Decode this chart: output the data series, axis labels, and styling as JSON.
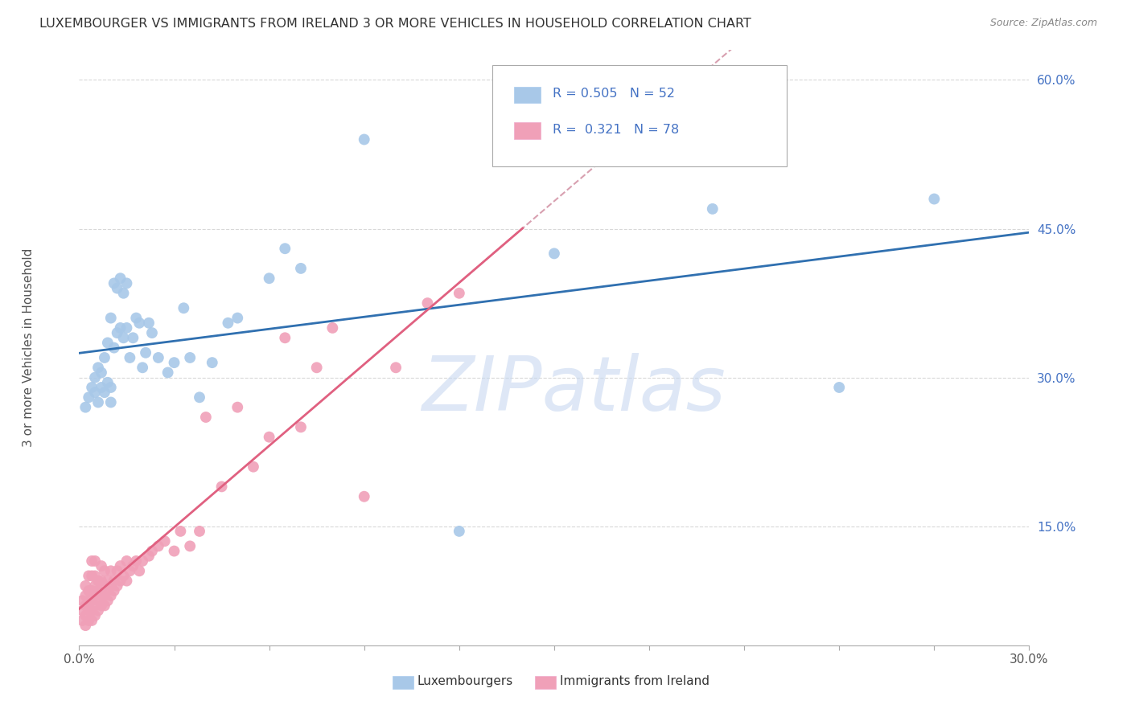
{
  "title": "LUXEMBOURGER VS IMMIGRANTS FROM IRELAND 3 OR MORE VEHICLES IN HOUSEHOLD CORRELATION CHART",
  "source": "Source: ZipAtlas.com",
  "ylabel": "3 or more Vehicles in Household",
  "xlim": [
    0.0,
    0.3
  ],
  "ylim": [
    0.03,
    0.63
  ],
  "x_ticks": [
    0.0,
    0.03,
    0.06,
    0.09,
    0.12,
    0.15,
    0.18,
    0.21,
    0.24,
    0.27,
    0.3
  ],
  "y_ticks": [
    0.15,
    0.3,
    0.45,
    0.6
  ],
  "y_tick_labels": [
    "15.0%",
    "30.0%",
    "45.0%",
    "60.0%"
  ],
  "legend_r1": "R = 0.505",
  "legend_n1": "N = 52",
  "legend_r2": "R =  0.321",
  "legend_n2": "N = 78",
  "blue_color": "#a8c8e8",
  "pink_color": "#f0a0b8",
  "blue_line_color": "#3070b0",
  "pink_line_color": "#e06080",
  "dash_line_color": "#d8a0b0",
  "grid_color": "#d8d8d8",
  "watermark": "ZIPatlas",
  "watermark_color": "#c8d8f0",
  "blue_scatter_x": [
    0.002,
    0.003,
    0.004,
    0.005,
    0.005,
    0.006,
    0.006,
    0.007,
    0.007,
    0.008,
    0.008,
    0.009,
    0.009,
    0.01,
    0.01,
    0.01,
    0.011,
    0.011,
    0.012,
    0.012,
    0.013,
    0.013,
    0.014,
    0.014,
    0.015,
    0.015,
    0.016,
    0.017,
    0.018,
    0.019,
    0.02,
    0.021,
    0.022,
    0.023,
    0.025,
    0.028,
    0.03,
    0.033,
    0.035,
    0.038,
    0.042,
    0.047,
    0.05,
    0.06,
    0.065,
    0.07,
    0.09,
    0.12,
    0.15,
    0.2,
    0.24,
    0.27
  ],
  "blue_scatter_y": [
    0.27,
    0.28,
    0.29,
    0.285,
    0.3,
    0.275,
    0.31,
    0.29,
    0.305,
    0.285,
    0.32,
    0.295,
    0.335,
    0.275,
    0.29,
    0.36,
    0.33,
    0.395,
    0.345,
    0.39,
    0.35,
    0.4,
    0.34,
    0.385,
    0.35,
    0.395,
    0.32,
    0.34,
    0.36,
    0.355,
    0.31,
    0.325,
    0.355,
    0.345,
    0.32,
    0.305,
    0.315,
    0.37,
    0.32,
    0.28,
    0.315,
    0.355,
    0.36,
    0.4,
    0.43,
    0.41,
    0.54,
    0.145,
    0.425,
    0.47,
    0.29,
    0.48
  ],
  "pink_scatter_x": [
    0.001,
    0.001,
    0.001,
    0.002,
    0.002,
    0.002,
    0.002,
    0.002,
    0.003,
    0.003,
    0.003,
    0.003,
    0.003,
    0.004,
    0.004,
    0.004,
    0.004,
    0.004,
    0.004,
    0.005,
    0.005,
    0.005,
    0.005,
    0.005,
    0.005,
    0.006,
    0.006,
    0.006,
    0.006,
    0.007,
    0.007,
    0.007,
    0.007,
    0.008,
    0.008,
    0.008,
    0.008,
    0.009,
    0.009,
    0.009,
    0.01,
    0.01,
    0.01,
    0.011,
    0.011,
    0.012,
    0.012,
    0.013,
    0.013,
    0.014,
    0.015,
    0.015,
    0.016,
    0.017,
    0.018,
    0.019,
    0.02,
    0.022,
    0.023,
    0.025,
    0.027,
    0.03,
    0.032,
    0.035,
    0.038,
    0.04,
    0.045,
    0.05,
    0.055,
    0.06,
    0.065,
    0.07,
    0.075,
    0.08,
    0.09,
    0.1,
    0.11,
    0.12
  ],
  "pink_scatter_y": [
    0.055,
    0.065,
    0.075,
    0.05,
    0.06,
    0.07,
    0.08,
    0.09,
    0.055,
    0.065,
    0.075,
    0.085,
    0.1,
    0.055,
    0.065,
    0.075,
    0.085,
    0.1,
    0.115,
    0.06,
    0.07,
    0.08,
    0.09,
    0.1,
    0.115,
    0.065,
    0.075,
    0.085,
    0.095,
    0.07,
    0.08,
    0.095,
    0.11,
    0.07,
    0.08,
    0.09,
    0.105,
    0.075,
    0.085,
    0.095,
    0.08,
    0.09,
    0.105,
    0.085,
    0.095,
    0.09,
    0.105,
    0.095,
    0.11,
    0.1,
    0.095,
    0.115,
    0.105,
    0.11,
    0.115,
    0.105,
    0.115,
    0.12,
    0.125,
    0.13,
    0.135,
    0.125,
    0.145,
    0.13,
    0.145,
    0.26,
    0.19,
    0.27,
    0.21,
    0.24,
    0.34,
    0.25,
    0.31,
    0.35,
    0.18,
    0.31,
    0.375,
    0.385
  ]
}
